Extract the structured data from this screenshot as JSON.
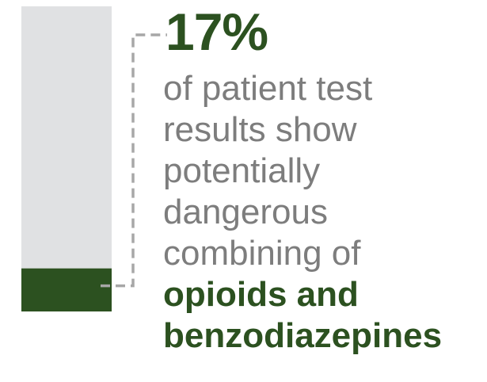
{
  "chart_data": {
    "type": "bar",
    "categories": [
      ""
    ],
    "values": [
      17
    ],
    "ylim": [
      0,
      100
    ],
    "value_label": "17%",
    "description_lines": [
      "of patient test",
      "results show",
      "potentially",
      "dangerous",
      "combining of"
    ],
    "emphasis_lines": [
      "opioids and",
      "benzodiazepines"
    ]
  },
  "colors": {
    "accent": "#2c5120",
    "track": "#e0e1e3",
    "text": "#7d7d7d",
    "connector": "#a7a7a7"
  }
}
